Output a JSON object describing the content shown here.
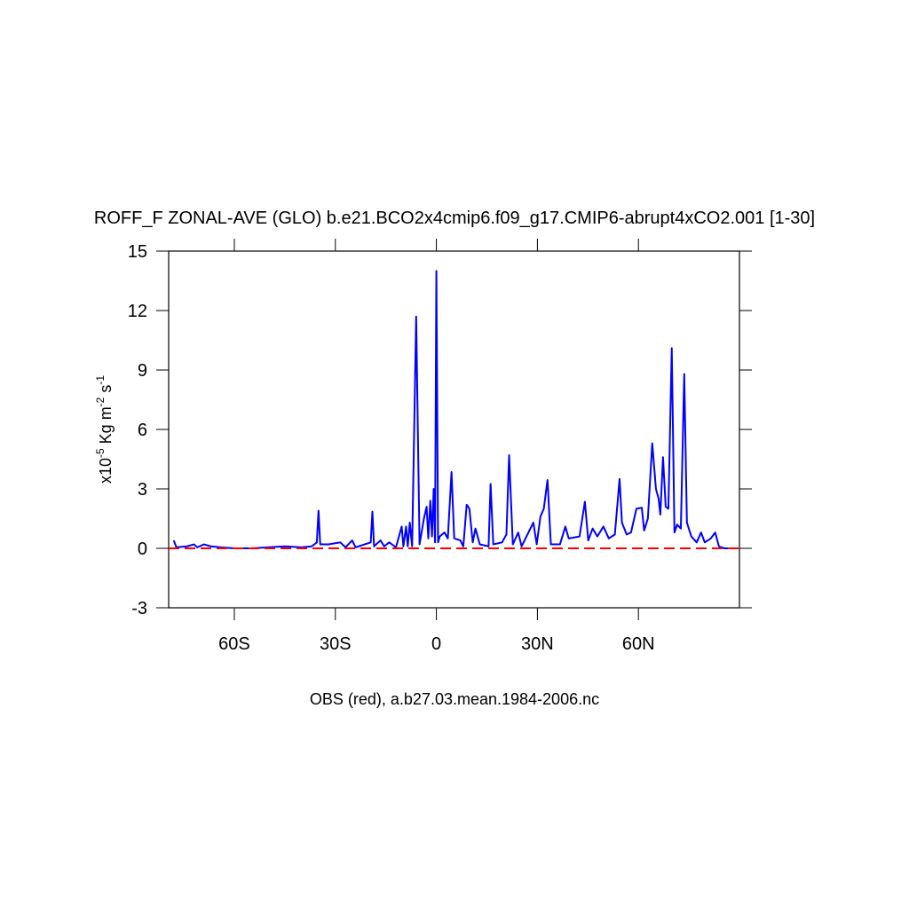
{
  "chart_data": {
    "type": "line",
    "title": "ROFF_F ZONAL-AVE (GLO) b.e21.BCO2x4cmip6.f09_g17.CMIP6-abrupt4xCO2.001 [1-30]",
    "ylabel": [
      "x10",
      "-5",
      " Kg m",
      "-2",
      " s",
      "-1"
    ],
    "xlabel": "OBS (red), a.b27.03.mean.1984-2006.nc",
    "xlim": [
      -79.5,
      90
    ],
    "ylim": [
      -3,
      15
    ],
    "xticks": [
      {
        "value": -60,
        "label": "60S"
      },
      {
        "value": -30,
        "label": "30S"
      },
      0,
      {
        "value": 30,
        "label": "30N"
      },
      {
        "value": 60,
        "label": "60N"
      }
    ],
    "yticks": [
      -3,
      0,
      3,
      6,
      9,
      12,
      15
    ],
    "series": [
      {
        "color": "#0000ff",
        "dash": false,
        "x": [
          -78,
          -77.2,
          -74,
          -72,
          -71,
          -69,
          -67,
          -64,
          -60,
          -55,
          -50,
          -45,
          -40,
          -37,
          -35.5,
          -35,
          -34.5,
          -32,
          -28.5,
          -27,
          -25,
          -24,
          -19.5,
          -19,
          -18.5,
          -16.6,
          -15.5,
          -14,
          -12,
          -10.3,
          -9.8,
          -9,
          -8.5,
          -7.9,
          -7.2,
          -6,
          -5,
          -3.7,
          -2.9,
          -2.4,
          -1.8,
          -1.3,
          -0.8,
          -0.4,
          0,
          0.5,
          1,
          2.4,
          3.4,
          4.5,
          5.3,
          7.1,
          8,
          9,
          9.8,
          10.8,
          11.6,
          12.9,
          15.5,
          16.1,
          16.9,
          19.5,
          20.8,
          21.6,
          22.7,
          24.3,
          25.3,
          28.8,
          29.8,
          30.9,
          31.9,
          33,
          34,
          36.7,
          38.3,
          39.3,
          42.5,
          44.1,
          45.1,
          46.4,
          47.8,
          49.6,
          51.2,
          53,
          54.4,
          55.1,
          56.5,
          57.8,
          59.4,
          61,
          61.7,
          62.8,
          64.1,
          65.2,
          66,
          66.5,
          67.3,
          68.1,
          68.9,
          69.9,
          70.7,
          71.5,
          72.6,
          73.6,
          74.4,
          75.7,
          77.3,
          78.6,
          79.7,
          81.5,
          82.8,
          83.9,
          85.5,
          89.4
        ],
        "values": [
          0.4,
          0.05,
          0.1,
          0.2,
          0.05,
          0.2,
          0.1,
          0.05,
          0.0,
          0.0,
          0.05,
          0.1,
          0.05,
          0.1,
          0.3,
          1.9,
          0.2,
          0.2,
          0.3,
          0.05,
          0.4,
          0.05,
          0.3,
          1.85,
          0.1,
          0.4,
          0.1,
          0.3,
          0.05,
          1.1,
          0.1,
          1.1,
          0.1,
          1.3,
          0.1,
          11.7,
          0.2,
          1.5,
          2.1,
          0.5,
          2.4,
          0.6,
          3.0,
          0.3,
          14.0,
          0.3,
          0.6,
          0.8,
          0.5,
          3.85,
          0.5,
          0.4,
          0.1,
          2.2,
          2.0,
          0.3,
          1.0,
          0.2,
          0.1,
          3.25,
          0.2,
          0.3,
          0.7,
          4.7,
          0.2,
          0.8,
          0.1,
          1.3,
          0.2,
          1.6,
          2.0,
          3.45,
          0.2,
          0.2,
          1.1,
          0.5,
          0.6,
          2.35,
          0.4,
          1.0,
          0.6,
          1.1,
          0.5,
          0.7,
          3.5,
          1.3,
          0.7,
          0.8,
          2.0,
          2.05,
          0.9,
          1.5,
          5.3,
          3.0,
          2.5,
          1.7,
          4.6,
          2.1,
          2.0,
          10.1,
          0.8,
          1.2,
          1.0,
          8.8,
          1.3,
          0.6,
          0.3,
          0.8,
          0.3,
          0.5,
          0.8,
          0.1,
          0.0,
          0.0
        ]
      },
      {
        "color": "#ff0000",
        "dash": true,
        "x": [
          -79.5,
          90
        ],
        "values": [
          0,
          0
        ]
      }
    ]
  }
}
